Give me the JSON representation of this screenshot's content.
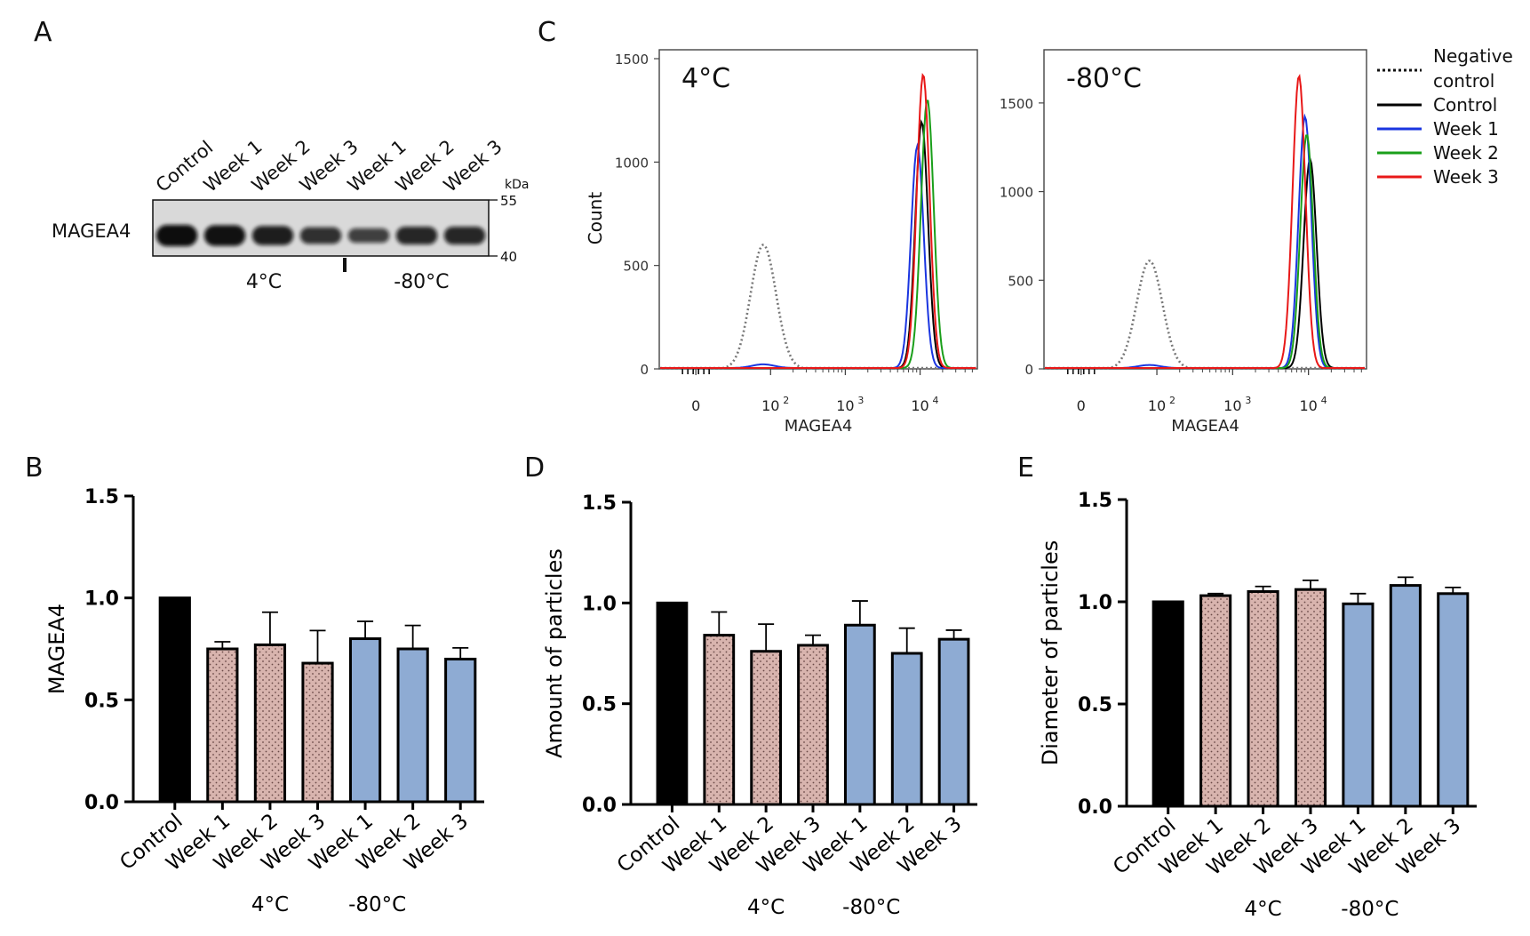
{
  "panels": {
    "A": "A",
    "B": "B",
    "C": "C",
    "D": "D",
    "E": "E"
  },
  "colors": {
    "control": "#000000",
    "cold": "#d8b4ae",
    "frozen": "#8eabd3",
    "negative": "#777777",
    "week1": "#1a35e0",
    "week2": "#1a9f1a",
    "week3": "#e81818"
  },
  "western_blot": {
    "lanes": [
      "Control",
      "Week 1",
      "Week 2",
      "Week 3",
      "Week 1",
      "Week 2",
      "Week 3"
    ],
    "band_intensity": [
      1.0,
      0.95,
      0.82,
      0.62,
      0.45,
      0.72,
      0.72
    ],
    "protein_label": "MAGEA4",
    "kda_label": "kDa",
    "markers": [
      "55",
      "40"
    ],
    "group_labels": [
      "4°C",
      "-80°C"
    ]
  },
  "chart_data": [
    {
      "type": "bar",
      "panel": "B",
      "categories": [
        "Control",
        "Week 1",
        "Week 2",
        "Week 3",
        "Week 1",
        "Week 2",
        "Week 3"
      ],
      "values": [
        1.0,
        0.75,
        0.77,
        0.68,
        0.8,
        0.75,
        0.7
      ],
      "errors": [
        0,
        0.035,
        0.16,
        0.16,
        0.085,
        0.115,
        0.055
      ],
      "groups": [
        "Control",
        "4°C",
        "4°C",
        "4°C",
        "-80°C",
        "-80°C",
        "-80°C"
      ],
      "group_labels": [
        "4°C",
        "-80°C"
      ],
      "xlabel": "",
      "ylabel": "MAGEA4",
      "ylim": [
        0,
        1.5
      ],
      "yticks": [
        "0.0",
        "0.5",
        "1.0",
        "1.5"
      ]
    },
    {
      "type": "histogram",
      "panel": "C",
      "subplot": "4°C",
      "title": "4°C",
      "xlabel": "MAGEA4",
      "ylabel": "Count",
      "xscale": "log",
      "ylim": [
        0,
        1500
      ],
      "yticks": [
        "0",
        "500",
        "1000",
        "1500"
      ],
      "xticks": [
        "0",
        "10^2",
        "10^3",
        "10^4"
      ],
      "series": [
        {
          "name": "Negative control",
          "style": "dotted",
          "peak_x": 80,
          "peak_y": 600
        },
        {
          "name": "Control",
          "peak_x": 10500,
          "peak_y": 1190
        },
        {
          "name": "Week 1",
          "peak_x": 9200,
          "peak_y": 1075
        },
        {
          "name": "Week 2",
          "peak_x": 12500,
          "peak_y": 1300
        },
        {
          "name": "Week 3",
          "peak_x": 11000,
          "peak_y": 1420
        }
      ]
    },
    {
      "type": "histogram",
      "panel": "C",
      "subplot": "-80°C",
      "title": "-80°C",
      "xlabel": "MAGEA4",
      "ylabel": "",
      "xscale": "log",
      "ylim": [
        0,
        1750
      ],
      "yticks": [
        "0",
        "500",
        "1000",
        "1500"
      ],
      "xticks": [
        "0",
        "10^2",
        "10^3",
        "10^4"
      ],
      "series": [
        {
          "name": "Negative control",
          "style": "dotted",
          "peak_x": 80,
          "peak_y": 610
        },
        {
          "name": "Control",
          "peak_x": 10500,
          "peak_y": 1180
        },
        {
          "name": "Week 1",
          "peak_x": 9000,
          "peak_y": 1420
        },
        {
          "name": "Week 2",
          "peak_x": 9500,
          "peak_y": 1320
        },
        {
          "name": "Week 3",
          "peak_x": 7500,
          "peak_y": 1650
        }
      ]
    },
    {
      "type": "bar",
      "panel": "D",
      "categories": [
        "Control",
        "Week 1",
        "Week 2",
        "Week 3",
        "Week 1",
        "Week 2",
        "Week 3"
      ],
      "values": [
        1.0,
        0.84,
        0.76,
        0.79,
        0.89,
        0.75,
        0.82
      ],
      "errors": [
        0,
        0.115,
        0.135,
        0.05,
        0.12,
        0.125,
        0.045
      ],
      "groups": [
        "Control",
        "4°C",
        "4°C",
        "4°C",
        "-80°C",
        "-80°C",
        "-80°C"
      ],
      "group_labels": [
        "4°C",
        "-80°C"
      ],
      "xlabel": "",
      "ylabel": "Amount of particles",
      "ylim": [
        0,
        1.5
      ],
      "yticks": [
        "0.0",
        "0.5",
        "1.0",
        "1.5"
      ]
    },
    {
      "type": "bar",
      "panel": "E",
      "categories": [
        "Control",
        "Week 1",
        "Week 2",
        "Week 3",
        "Week 1",
        "Week 2",
        "Week 3"
      ],
      "values": [
        1.0,
        1.03,
        1.05,
        1.06,
        0.99,
        1.08,
        1.04
      ],
      "errors": [
        0,
        0.01,
        0.025,
        0.045,
        0.05,
        0.04,
        0.03
      ],
      "groups": [
        "Control",
        "4°C",
        "4°C",
        "4°C",
        "-80°C",
        "-80°C",
        "-80°C"
      ],
      "group_labels": [
        "4°C",
        "-80°C"
      ],
      "xlabel": "",
      "ylabel": "Diameter of particles",
      "ylim": [
        0,
        1.5
      ],
      "yticks": [
        "0.0",
        "0.5",
        "1.0",
        "1.5"
      ]
    }
  ],
  "legend": [
    "Negative control",
    "Control",
    "Week 1",
    "Week 2",
    "Week 3"
  ]
}
